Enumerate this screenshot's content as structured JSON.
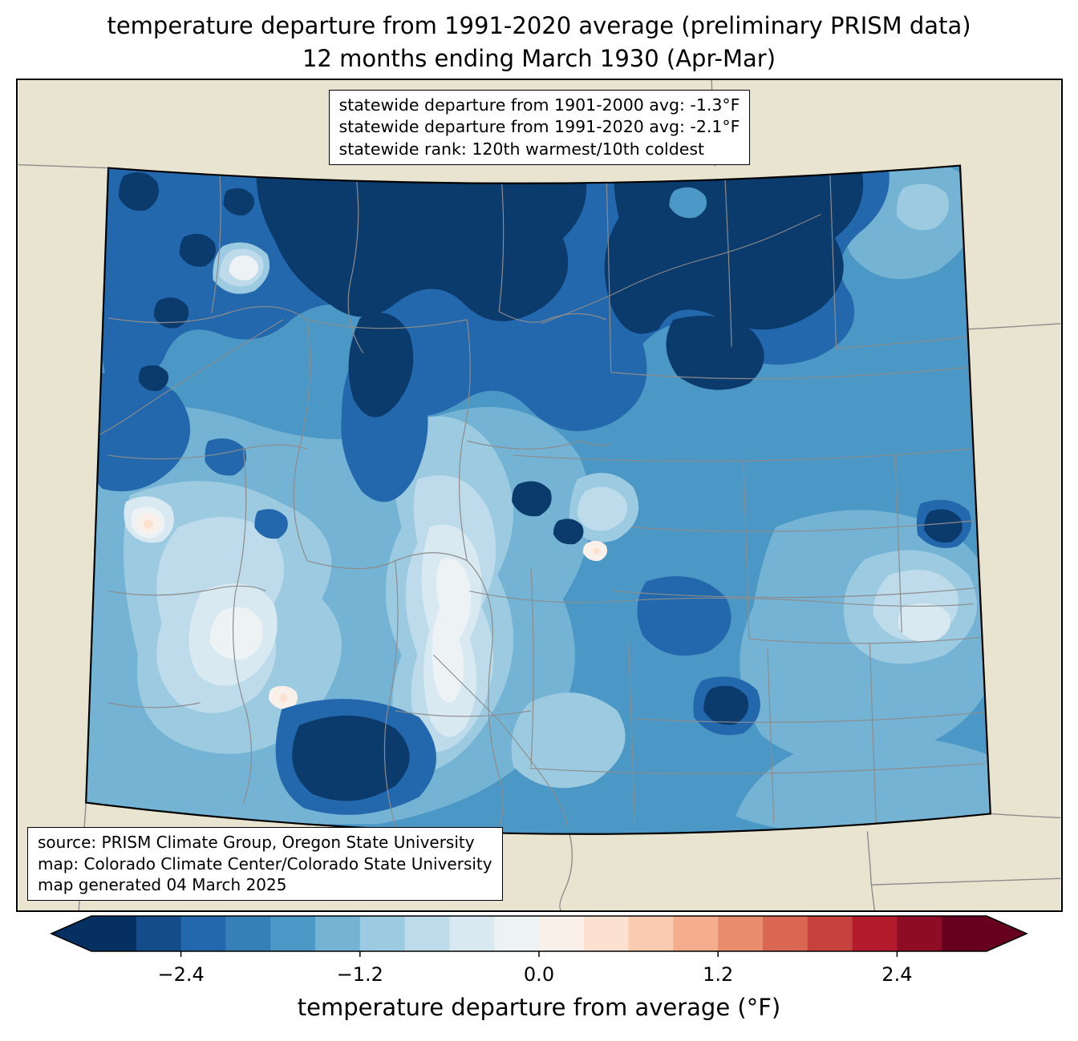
{
  "title": {
    "line1": "temperature departure from 1991-2020 average (preliminary PRISM data)",
    "line2": "12 months ending March 1930 (Apr-Mar)"
  },
  "stats_box": {
    "line1": "statewide departure from 1901-2000 avg: -1.3°F",
    "line2": "statewide departure from 1991-2020 avg: -2.1°F",
    "line3": "statewide rank: 120th warmest/10th coldest"
  },
  "source_box": {
    "line1": "source: PRISM Climate Group, Oregon State University",
    "line2": "map: Colorado Climate Center/Colorado State University",
    "line3": "map generated 04 March 2025"
  },
  "colorbar": {
    "label": "temperature departure from average (°F)",
    "tick_labels": [
      "−2.4",
      "−1.2",
      "0.0",
      "1.2",
      "2.4"
    ],
    "tick_values": [
      -2.4,
      -1.2,
      0.0,
      1.2,
      2.4
    ],
    "vmin": -3.0,
    "vmax": 3.0,
    "under_color": "#053061",
    "over_color": "#67001f",
    "segment_colors": [
      "#053061",
      "#144c89",
      "#2368ad",
      "#3580b9",
      "#4b98c6",
      "#75b3d4",
      "#9ccae1",
      "#bddbea",
      "#d9e9f2",
      "#edf2f5",
      "#f9f0ea",
      "#fce1d1",
      "#facab1",
      "#f5ae8d",
      "#e98c6e",
      "#d96753",
      "#c7423f",
      "#b41c2d",
      "#8e0d25",
      "#67001f"
    ]
  },
  "map": {
    "background": "#e8e4d0",
    "fill_base": "#4b98c6",
    "dark1": "#2368ad",
    "dark2": "#0b3a6d",
    "light1": "#75b3d4",
    "light2": "#9ccae1",
    "light3": "#bddbea",
    "light4": "#d9e9f2",
    "light5": "#edf2f5",
    "cream": "#f9f0ea",
    "pink": "#fce1d1",
    "line_gray": "#8c8c8c",
    "border_black": "#000000"
  }
}
